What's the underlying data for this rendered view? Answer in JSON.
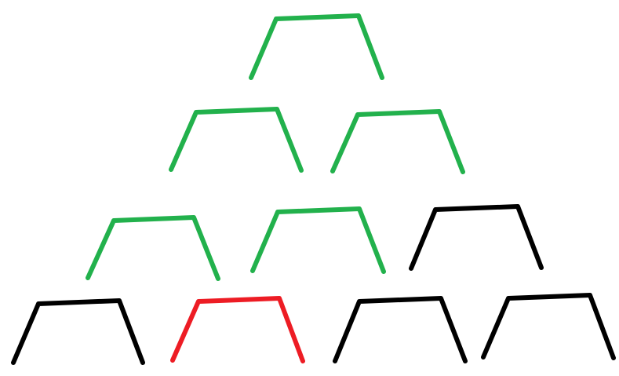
{
  "colors": {
    "green": "#22b14c",
    "red": "#ed1c24",
    "black": "#000000",
    "background": "#ffffff"
  },
  "diagram": {
    "type": "card-pyramid",
    "rows": [
      {
        "row": 1,
        "cards": [
          {
            "color": "green"
          }
        ]
      },
      {
        "row": 2,
        "cards": [
          {
            "color": "green"
          },
          {
            "color": "green"
          }
        ]
      },
      {
        "row": 3,
        "cards": [
          {
            "color": "green"
          },
          {
            "color": "green"
          },
          {
            "color": "black"
          }
        ]
      },
      {
        "row": 4,
        "cards": [
          {
            "color": "black"
          },
          {
            "color": "red"
          },
          {
            "color": "black"
          },
          {
            "color": "black"
          }
        ]
      }
    ]
  }
}
